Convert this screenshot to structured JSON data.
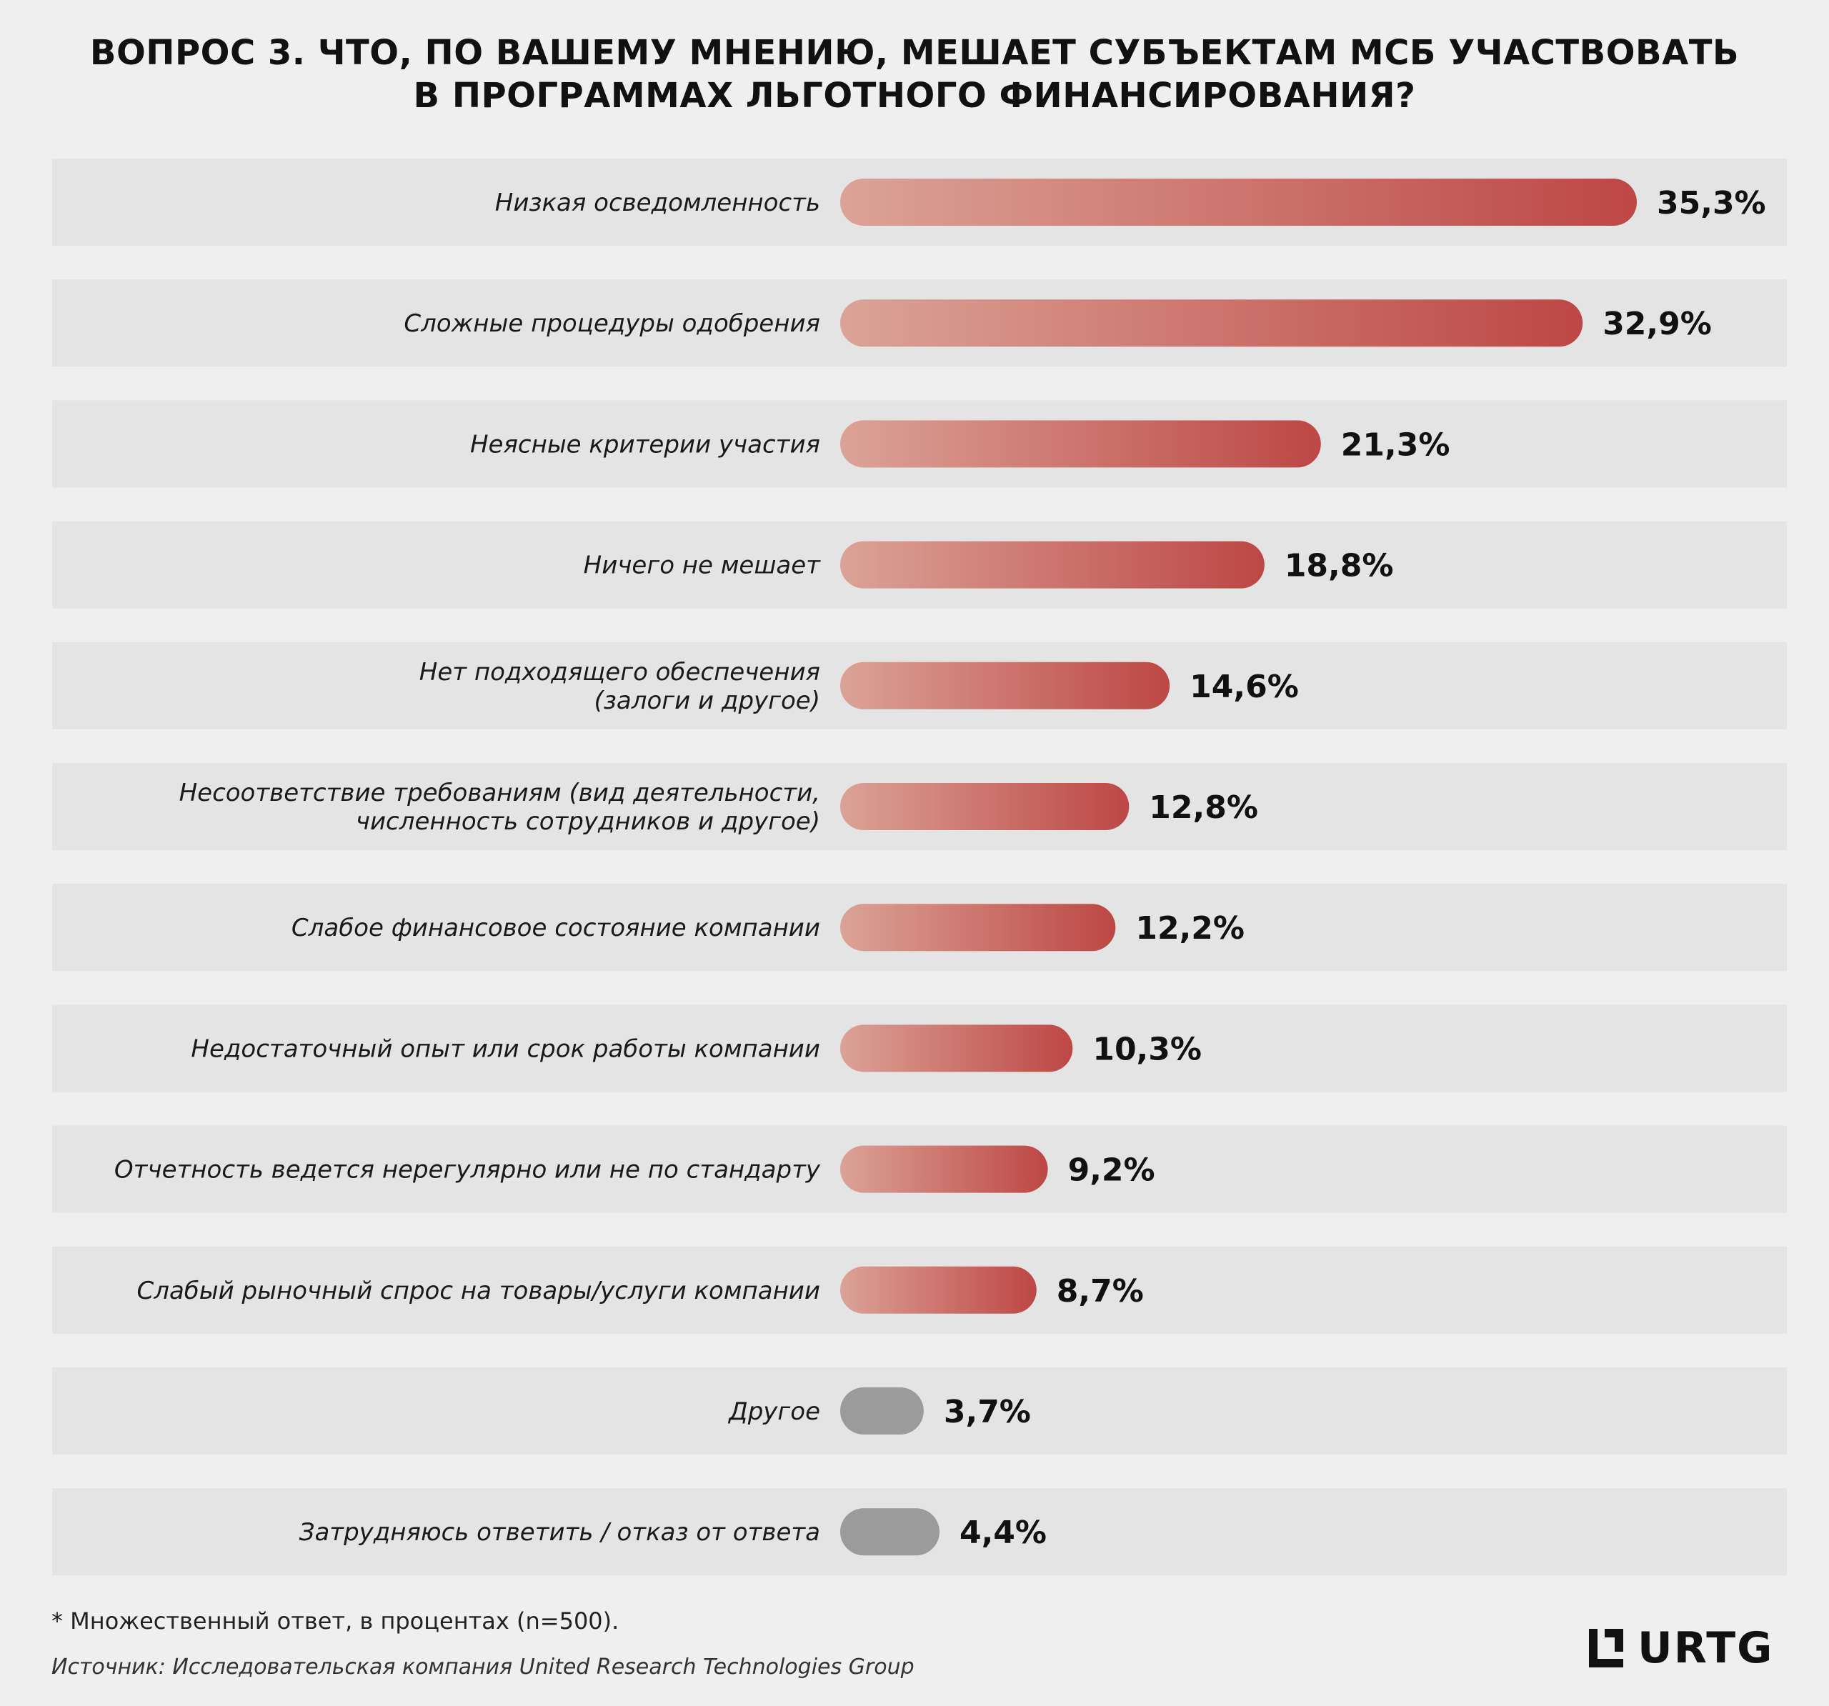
{
  "title": {
    "line1": "ВОПРОС 3. ЧТО, ПО ВАШЕМУ МНЕНИЮ, МЕШАЕТ СУБЪЕКТАМ МСБ УЧАСТВОВАТЬ",
    "line2": "В ПРОГРАММАХ ЛЬГОТНОГО ФИНАНСИРОВАНИЯ?"
  },
  "colors": {
    "background": "#efefef",
    "row_background": "#e4e4e4",
    "bar_gradient_start": "#dba397",
    "bar_gradient_end": "#bd4745",
    "gray_bar": "#9b9b9b"
  },
  "chart_data": {
    "type": "bar",
    "orientation": "horizontal",
    "categories": [
      [
        "Низкая осведомленность"
      ],
      [
        "Сложные процедуры одобрения"
      ],
      [
        "Неясные критерии участия"
      ],
      [
        "Ничего не мешает"
      ],
      [
        "Нет подходящего обеспечения",
        "(залоги и другое)"
      ],
      [
        "Несоответствие требованиям (вид деятельности,",
        "численность сотрудников и другое)"
      ],
      [
        "Слабое финансовое состояние компании"
      ],
      [
        "Недостаточный опыт или срок работы компании"
      ],
      [
        "Отчетность ведется нерегулярно или не по стандарту"
      ],
      [
        "Слабый рыночный спрос на товары/услуги компании"
      ],
      [
        "Другое"
      ],
      [
        "Затрудняюсь ответить / отказ от ответа"
      ]
    ],
    "values": [
      35.3,
      32.9,
      21.3,
      18.8,
      14.6,
      12.8,
      12.2,
      10.3,
      9.2,
      8.7,
      3.7,
      4.4
    ],
    "value_labels": [
      "35,3%",
      "32,9%",
      "21,3%",
      "18,8%",
      "14,6%",
      "12,8%",
      "12,2%",
      "10,3%",
      "9,2%",
      "8,7%",
      "3,7%",
      "4,4%"
    ],
    "bar_style": [
      "red",
      "red",
      "red",
      "red",
      "red",
      "red",
      "red",
      "red",
      "red",
      "red",
      "gray",
      "gray"
    ],
    "unit": "%"
  },
  "footnote": "* Множественный ответ, в процентах (n=500).",
  "source": "Источник: Исследовательская компания United Research Technologies Group",
  "logo": {
    "text": "URTG"
  }
}
